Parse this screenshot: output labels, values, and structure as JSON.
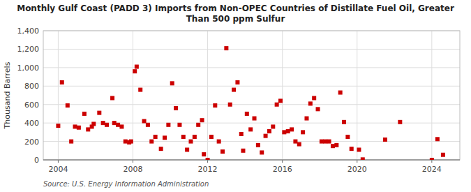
{
  "chart_data": {
    "type": "scatter",
    "title": "Monthly Gulf Coast (PADD 3) Imports from Non-OPEC Countries of Distillate Fuel Oil, Greater\nThan 500 ppm Sulfur",
    "ylabel": "Thousand Barrels",
    "annotations": [
      "Source: U.S. Energy Information Administration"
    ],
    "color": "#cc0000",
    "marker": "square",
    "grid": true,
    "xlim": [
      2003.2,
      2025.5
    ],
    "ylim": [
      0,
      1400
    ],
    "xticks": [
      2004,
      2008,
      2012,
      2016,
      2020,
      2024
    ],
    "yticks": [
      0,
      200,
      400,
      600,
      800,
      {
        "value": 1000,
        "label": "1,000"
      },
      {
        "value": 1200,
        "label": "1,200"
      },
      {
        "value": 1400,
        "label": "1,400"
      }
    ],
    "x": [
      2004.0,
      2004.2,
      2004.5,
      2004.7,
      2004.9,
      2005.1,
      2005.4,
      2005.6,
      2005.8,
      2005.9,
      2006.2,
      2006.4,
      2006.6,
      2006.9,
      2007.0,
      2007.2,
      2007.4,
      2007.6,
      2007.8,
      2007.9,
      2008.1,
      2008.2,
      2008.4,
      2008.6,
      2008.8,
      2009.0,
      2009.2,
      2009.5,
      2009.7,
      2009.9,
      2010.1,
      2010.3,
      2010.5,
      2010.7,
      2010.9,
      2011.1,
      2011.3,
      2011.5,
      2011.7,
      2011.8,
      2012.0,
      2012.2,
      2012.4,
      2012.6,
      2012.8,
      2013.0,
      2013.2,
      2013.4,
      2013.6,
      2013.8,
      2013.9,
      2014.1,
      2014.3,
      2014.5,
      2014.7,
      2014.9,
      2015.1,
      2015.3,
      2015.5,
      2015.7,
      2015.9,
      2016.1,
      2016.3,
      2016.5,
      2016.7,
      2016.9,
      2017.1,
      2017.3,
      2017.5,
      2017.7,
      2017.9,
      2018.1,
      2018.3,
      2018.5,
      2018.7,
      2018.9,
      2019.1,
      2019.3,
      2019.5,
      2019.7,
      2020.1,
      2020.3,
      2021.5,
      2022.3,
      2024.0,
      2024.3,
      2024.6
    ],
    "values": [
      370,
      840,
      590,
      200,
      360,
      350,
      500,
      330,
      360,
      390,
      510,
      400,
      380,
      670,
      400,
      380,
      360,
      200,
      190,
      200,
      960,
      1010,
      760,
      420,
      380,
      200,
      250,
      120,
      240,
      380,
      830,
      560,
      380,
      250,
      110,
      200,
      250,
      380,
      430,
      60,
      0,
      250,
      590,
      200,
      90,
      1210,
      600,
      760,
      840,
      280,
      100,
      500,
      330,
      450,
      160,
      80,
      260,
      310,
      360,
      600,
      640,
      300,
      310,
      330,
      200,
      170,
      300,
      450,
      610,
      670,
      550,
      200,
      200,
      200,
      150,
      160,
      730,
      410,
      250,
      120,
      110,
      5,
      220,
      410,
      0,
      225,
      55
    ]
  }
}
